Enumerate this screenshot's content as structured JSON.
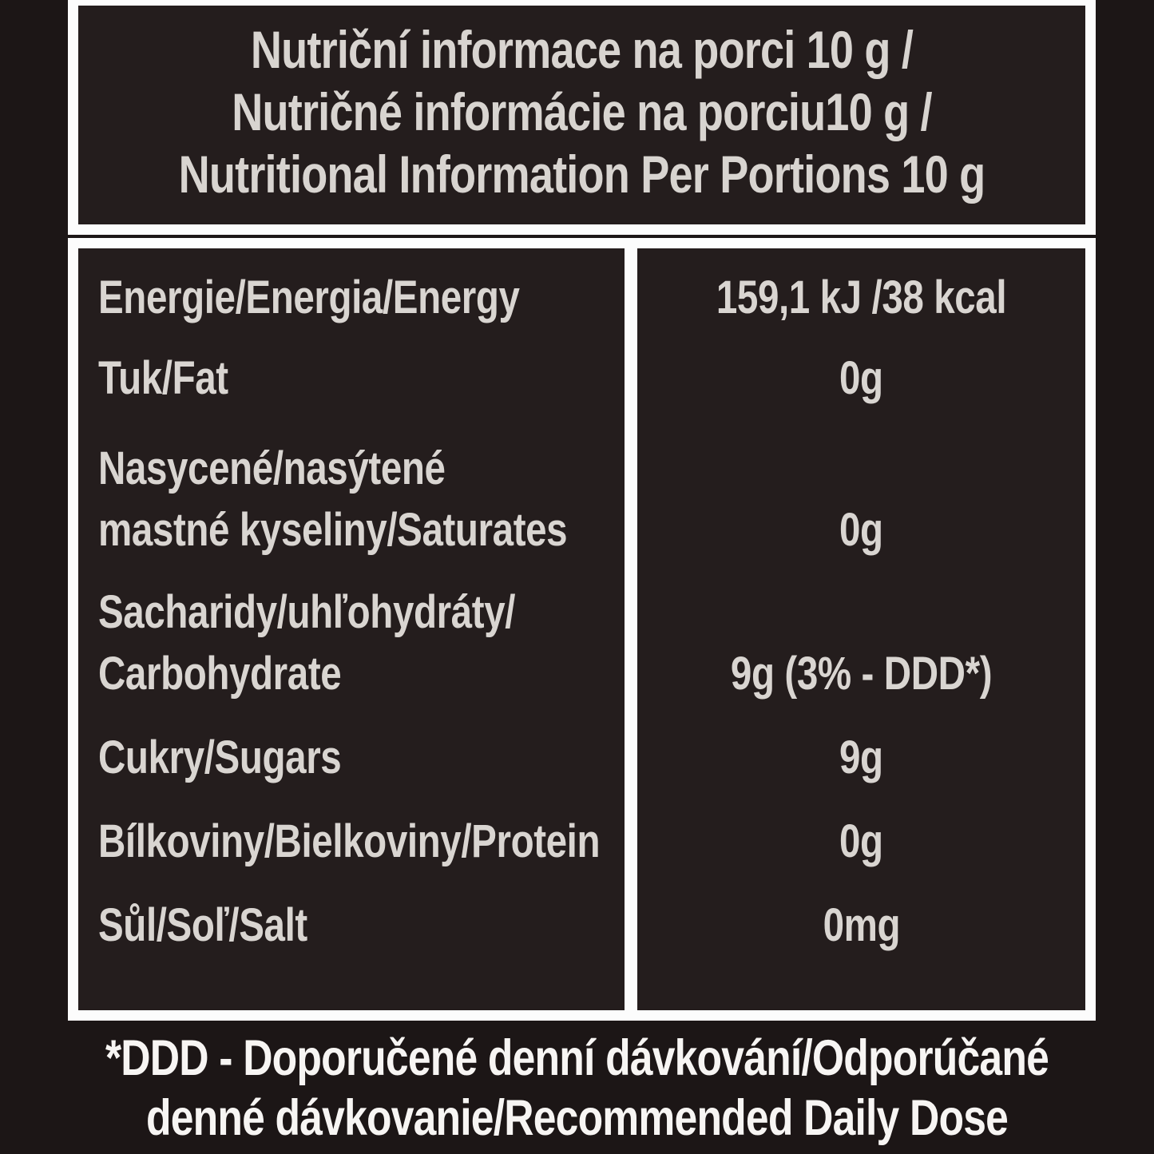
{
  "title": {
    "lines": [
      "Nutriční informace na porci 10 g /",
      "Nutričné informácie na porciu10 g /",
      "Nutritional Information Per Portions 10 g"
    ]
  },
  "table": {
    "rows": [
      {
        "label_lines": [
          "Energie/Energia/Energy"
        ],
        "value": "159,1 kJ /38 kcal"
      },
      {
        "label_lines": [
          "Tuk/Fat"
        ],
        "value": "0g"
      },
      {
        "label_lines": [
          "Nasycené/nasýtené",
          "mastné kyseliny/Saturates"
        ],
        "value": "0g"
      },
      {
        "label_lines": [
          "Sacharidy/uhľohydráty/",
          "Carbohydrate"
        ],
        "value": "9g (3% - DDD*)"
      },
      {
        "label_lines": [
          "Cukry/Sugars"
        ],
        "value": "9g"
      },
      {
        "label_lines": [
          "Bílkoviny/Bielkoviny/Protein"
        ],
        "value": "0g"
      },
      {
        "label_lines": [
          "Sůl/Soľ/Salt"
        ],
        "value": "0mg"
      }
    ]
  },
  "footnote": {
    "lines": [
      "*DDD - Doporučené denní dávkování/Odporúčané",
      "denné dávkovanie/Recommended Daily Dose"
    ]
  },
  "colors": {
    "background": "#1c1616",
    "box_fill": "#241d1d",
    "border": "#fcfcfc",
    "text": "#d8d4d0",
    "footnote_text": "#f7f5f3"
  }
}
